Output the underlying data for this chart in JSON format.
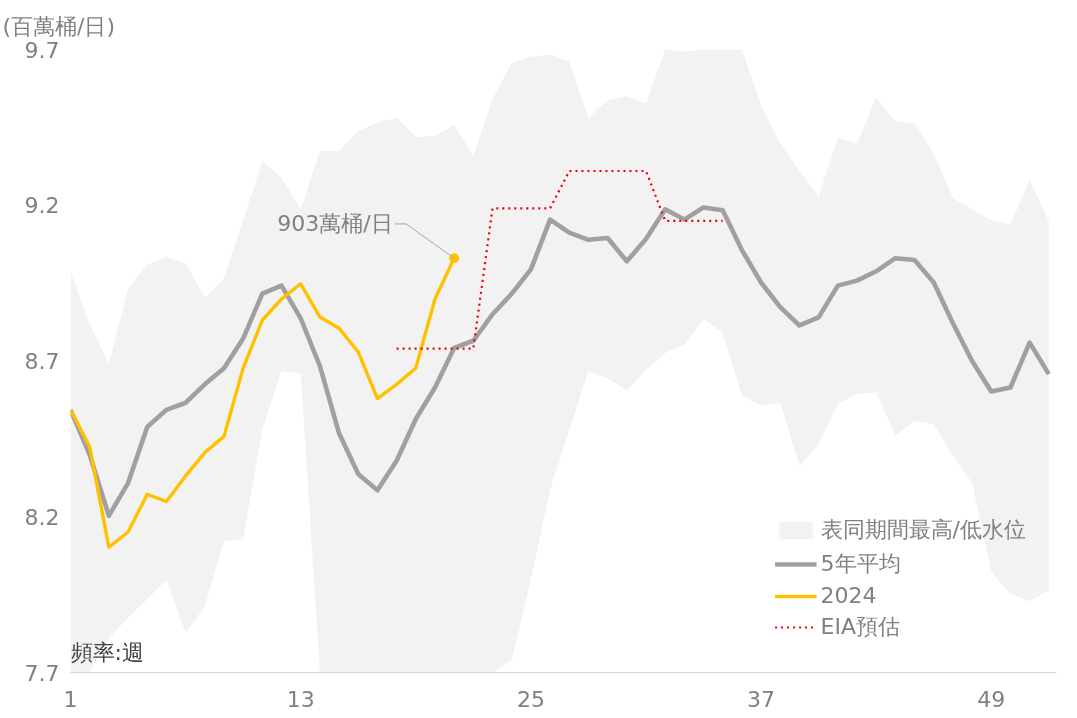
{
  "chart_data": {
    "type": "line",
    "ylabel": "(百萬桶/日)",
    "x": [
      1,
      2,
      3,
      4,
      5,
      6,
      7,
      8,
      9,
      10,
      11,
      12,
      13,
      14,
      15,
      16,
      17,
      18,
      19,
      20,
      21,
      22,
      23,
      24,
      25,
      26,
      27,
      28,
      29,
      30,
      31,
      32,
      33,
      34,
      35,
      36,
      37,
      38,
      39,
      40,
      41,
      42,
      43,
      44,
      45,
      46,
      47,
      48,
      49,
      50,
      51,
      52
    ],
    "series": [
      {
        "name": "5年平均",
        "color": "#a0a0a0",
        "values": [
          8.543,
          8.399,
          8.203,
          8.308,
          8.488,
          8.543,
          8.566,
          8.625,
          8.677,
          8.772,
          8.916,
          8.942,
          8.837,
          8.684,
          8.468,
          8.337,
          8.285,
          8.38,
          8.514,
          8.615,
          8.742,
          8.765,
          8.85,
          8.916,
          8.994,
          9.154,
          9.112,
          9.089,
          9.095,
          9.02,
          9.092,
          9.187,
          9.154,
          9.193,
          9.184,
          9.056,
          8.952,
          8.873,
          8.814,
          8.84,
          8.942,
          8.958,
          8.988,
          9.03,
          9.024,
          8.952,
          8.821,
          8.7,
          8.602,
          8.615,
          8.759,
          8.658
        ],
        "lower": [
          7.7,
          7.7,
          7.81,
          7.876,
          7.935,
          7.997,
          7.827,
          7.912,
          8.122,
          8.128,
          8.48,
          8.667,
          8.661,
          7.7,
          7.7,
          7.7,
          7.7,
          7.7,
          7.7,
          7.7,
          7.7,
          7.7,
          7.7,
          7.74,
          7.997,
          8.285,
          8.48,
          8.667,
          8.644,
          8.605,
          8.671,
          8.726,
          8.752,
          8.834,
          8.791,
          8.589,
          8.556,
          8.566,
          8.363,
          8.432,
          8.563,
          8.595,
          8.599,
          8.461,
          8.507,
          8.497,
          8.396,
          8.308,
          8.024,
          7.952,
          7.929,
          7.965
        ],
        "upper": [
          8.988,
          8.818,
          8.693,
          8.932,
          9.01,
          9.033,
          9.014,
          8.903,
          8.965,
          9.154,
          9.341,
          9.288,
          9.187,
          9.373,
          9.373,
          9.439,
          9.465,
          9.481,
          9.419,
          9.422,
          9.458,
          9.36,
          9.54,
          9.657,
          9.677,
          9.684,
          9.661,
          9.481,
          9.537,
          9.55,
          9.527,
          9.7,
          9.693,
          9.7,
          9.7,
          9.7,
          9.52,
          9.399,
          9.311,
          9.229,
          9.416,
          9.399,
          9.546,
          9.468,
          9.465,
          9.366,
          9.223,
          9.187,
          9.151,
          9.138,
          9.282,
          9.148
        ]
      },
      {
        "name": "2024",
        "color": "#ffc000",
        "values": [
          8.543,
          8.425,
          8.102,
          8.151,
          8.272,
          8.249,
          8.331,
          8.406,
          8.458,
          8.677,
          8.831,
          8.899,
          8.948,
          8.841,
          8.805,
          8.729,
          8.579,
          8.625,
          8.677,
          8.899,
          9.03,
          null,
          null,
          null,
          null,
          null,
          null,
          null,
          null,
          null,
          null,
          null,
          null,
          null,
          null,
          null,
          null,
          null,
          null,
          null,
          null,
          null,
          null,
          null,
          null,
          null,
          null,
          null,
          null,
          null,
          null,
          null
        ]
      },
      {
        "name": "EIA預估",
        "color": "#e8000b",
        "line_style": "dotted",
        "x": [
          18,
          22,
          23,
          26,
          27,
          31,
          32,
          35
        ],
        "values": [
          8.74,
          8.74,
          9.19,
          9.19,
          9.31,
          9.31,
          9.15,
          9.15
        ]
      }
    ],
    "annotations": [
      {
        "text": "903萬桶/日",
        "x": 21,
        "y": 9.03
      },
      "表同期間最高/低水位",
      "頻率:週"
    ],
    "xlim": [
      1,
      52.4
    ],
    "xticks": [
      1,
      13,
      25,
      37,
      49
    ],
    "ylim": [
      7.7,
      9.7
    ],
    "yticks": [
      7.7,
      8.2,
      8.7,
      9.2,
      9.7
    ],
    "grid": false,
    "legend": "bottom right"
  }
}
